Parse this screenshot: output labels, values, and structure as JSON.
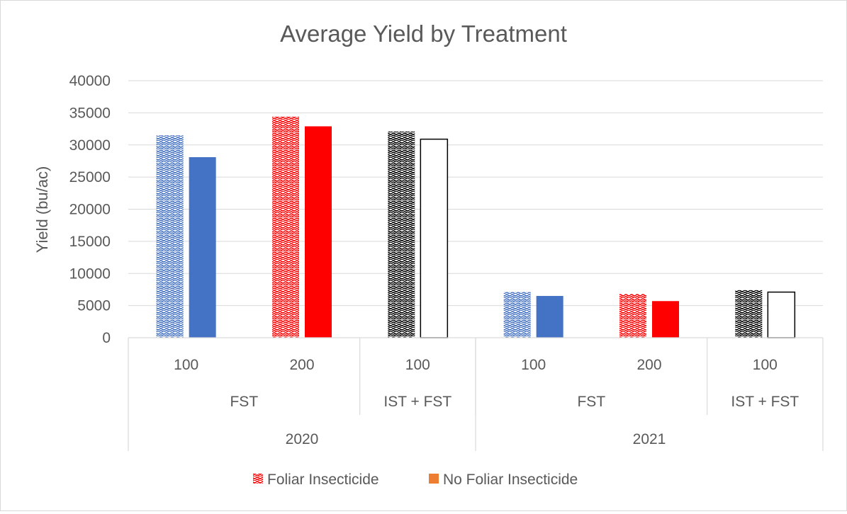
{
  "chart_data": {
    "type": "bar",
    "title": "Average Yield by Treatment",
    "xlabel": "",
    "ylabel": "Yield (bu/ac)",
    "ylim": [
      0,
      40000
    ],
    "yticks": [
      0,
      5000,
      10000,
      15000,
      20000,
      25000,
      30000,
      35000,
      40000
    ],
    "grid": true,
    "legend_position": "bottom",
    "categories": [
      {
        "year": "2020",
        "treatment": "FST",
        "rate": "100"
      },
      {
        "year": "2020",
        "treatment": "FST",
        "rate": "200"
      },
      {
        "year": "2020",
        "treatment": "IST + FST",
        "rate": "100"
      },
      {
        "year": "2021",
        "treatment": "FST",
        "rate": "100"
      },
      {
        "year": "2021",
        "treatment": "FST",
        "rate": "200"
      },
      {
        "year": "2021",
        "treatment": "IST + FST",
        "rate": "100"
      }
    ],
    "series": [
      {
        "name": "Foliar Insecticide",
        "values": [
          31500,
          34400,
          32100,
          7100,
          6800,
          7400
        ]
      },
      {
        "name": "No Foliar Insecticide",
        "values": [
          28100,
          32900,
          30900,
          6500,
          5700,
          7100
        ]
      }
    ],
    "bar_colors": [
      "#4472c4",
      "#ff0000",
      "#000000",
      "#4472c4",
      "#ff0000",
      "#000000"
    ],
    "solid_fills": [
      "#4472c4",
      "#ff0000",
      "#ffffff",
      "#4472c4",
      "#ff0000",
      "#ffffff"
    ],
    "legend_colors": [
      "#ff0000",
      "#ed7d31"
    ]
  }
}
